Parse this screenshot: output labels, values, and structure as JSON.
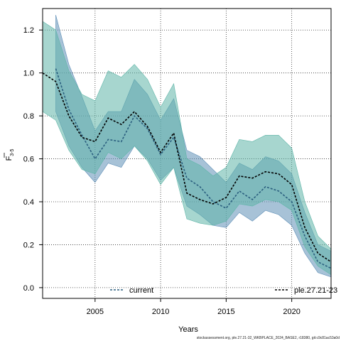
{
  "chart_data": {
    "type": "line",
    "xlabel": "Years",
    "ylabel_main": "F",
    "ylabel_sub": "3-5",
    "xlim": [
      2001,
      2023
    ],
    "ylim": [
      0,
      1.3
    ],
    "grid": true,
    "legend_placement": "bottom",
    "x_ticks": [
      2005,
      2010,
      2015,
      2020
    ],
    "y_ticks": [
      0.0,
      0.2,
      0.4,
      0.6,
      0.8,
      1.0,
      1.2
    ],
    "x_tick_labels": [
      "2005",
      "2010",
      "2015",
      "2020"
    ],
    "y_tick_labels": [
      "0.0",
      "0.2",
      "0.4",
      "0.6",
      "0.8",
      "1.0",
      "1.2"
    ],
    "footnote": "stockassessment.org, ple.27.21-32_WKBPLACE_2024_BASE2, r18380, git:c9c81ac53a0d",
    "series": [
      {
        "name": "current",
        "color": "#4a7fa8",
        "line_color": "#2b5f7f",
        "band_color": "#5f8fb7",
        "x": [
          2002,
          2003,
          2004,
          2005,
          2006,
          2007,
          2008,
          2009,
          2010,
          2011,
          2012,
          2013,
          2014,
          2015,
          2016,
          2017,
          2018,
          2019,
          2020,
          2021,
          2022,
          2023
        ],
        "values": [
          1.02,
          0.83,
          0.71,
          0.6,
          0.69,
          0.68,
          0.8,
          0.74,
          0.62,
          0.7,
          0.51,
          0.47,
          0.4,
          0.37,
          0.45,
          0.41,
          0.47,
          0.45,
          0.4,
          0.24,
          0.12,
          0.09
        ],
        "lower": [
          0.82,
          0.66,
          0.56,
          0.49,
          0.58,
          0.56,
          0.66,
          0.6,
          0.5,
          0.56,
          0.38,
          0.34,
          0.29,
          0.28,
          0.35,
          0.31,
          0.36,
          0.34,
          0.29,
          0.16,
          0.07,
          0.05
        ],
        "upper": [
          1.27,
          1.04,
          0.89,
          0.73,
          0.82,
          0.82,
          0.97,
          0.9,
          0.78,
          0.88,
          0.64,
          0.61,
          0.55,
          0.49,
          0.58,
          0.55,
          0.61,
          0.59,
          0.53,
          0.35,
          0.2,
          0.17
        ]
      },
      {
        "name": "ple.27.21-23",
        "color": "#5fb5a8",
        "line_color": "#000000",
        "band_color": "#5fb5a8",
        "x": [
          2001,
          2002,
          2003,
          2004,
          2005,
          2006,
          2007,
          2008,
          2009,
          2010,
          2011,
          2012,
          2013,
          2014,
          2015,
          2016,
          2017,
          2018,
          2019,
          2020,
          2021,
          2022,
          2023
        ],
        "values": [
          1.0,
          0.96,
          0.8,
          0.7,
          0.68,
          0.79,
          0.76,
          0.82,
          0.75,
          0.63,
          0.72,
          0.44,
          0.41,
          0.39,
          0.42,
          0.52,
          0.51,
          0.54,
          0.53,
          0.48,
          0.28,
          0.16,
          0.12
        ],
        "lower": [
          0.82,
          0.78,
          0.64,
          0.55,
          0.53,
          0.63,
          0.6,
          0.66,
          0.59,
          0.48,
          0.56,
          0.32,
          0.3,
          0.29,
          0.31,
          0.39,
          0.38,
          0.41,
          0.4,
          0.36,
          0.19,
          0.1,
          0.06
        ],
        "upper": [
          1.24,
          1.2,
          1.01,
          0.9,
          0.87,
          1.01,
          0.98,
          1.04,
          0.97,
          0.84,
          0.95,
          0.6,
          0.57,
          0.52,
          0.56,
          0.69,
          0.68,
          0.71,
          0.71,
          0.65,
          0.4,
          0.24,
          0.18
        ]
      }
    ]
  }
}
